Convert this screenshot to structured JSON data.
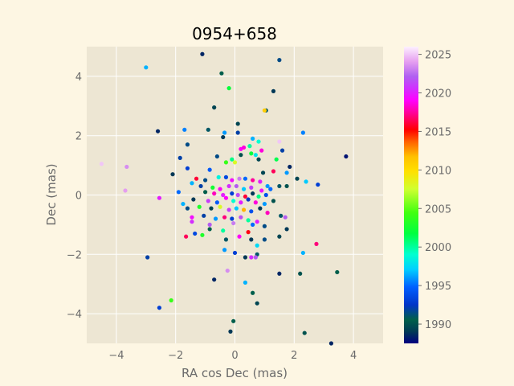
{
  "chart_data": {
    "type": "scatter",
    "title": "0954+658",
    "xlabel": "RA cos Dec (mas)",
    "ylabel": "Dec (mas)",
    "xlim": [
      -5.0,
      5.0
    ],
    "ylim": [
      -5.0,
      5.0
    ],
    "xticks": [
      -4,
      -2,
      0,
      2,
      4
    ],
    "yticks": [
      -4,
      -2,
      0,
      2,
      4
    ],
    "grid": true,
    "colorbar": {
      "label": "",
      "range": [
        1987.5,
        2026
      ],
      "ticks": [
        1990,
        1995,
        2000,
        2005,
        2010,
        2015,
        2020,
        2025
      ],
      "colormap": "gist_ncar"
    },
    "background_color": "#ede6d3",
    "page_color": "#fdf6e3",
    "points": [
      {
        "x": -1.1,
        "y": 4.75,
        "c": 1988.5
      },
      {
        "x": -0.45,
        "y": 4.1,
        "c": 1990.5
      },
      {
        "x": 1.5,
        "y": 4.55,
        "c": 1991.5
      },
      {
        "x": -3.0,
        "y": 4.3,
        "c": 1996.5
      },
      {
        "x": -0.2,
        "y": 3.6,
        "c": 2002.0
      },
      {
        "x": 1.3,
        "y": 3.5,
        "c": 1989.0
      },
      {
        "x": -0.7,
        "y": 2.95,
        "c": 1989.5
      },
      {
        "x": 1.05,
        "y": 2.85,
        "c": 1991.0
      },
      {
        "x": 1.0,
        "y": 2.85,
        "c": 2011.0
      },
      {
        "x": -2.6,
        "y": 2.15,
        "c": 1988.5
      },
      {
        "x": -1.7,
        "y": 2.2,
        "c": 1995.5
      },
      {
        "x": -0.9,
        "y": 2.2,
        "c": 1991.0
      },
      {
        "x": 2.3,
        "y": 2.1,
        "c": 1995.5
      },
      {
        "x": 0.1,
        "y": 2.4,
        "c": 1989.5
      },
      {
        "x": 0.1,
        "y": 2.1,
        "c": 1992.0
      },
      {
        "x": -0.35,
        "y": 2.1,
        "c": 1996.0
      },
      {
        "x": 0.6,
        "y": 1.9,
        "c": 1996.5
      },
      {
        "x": -0.4,
        "y": 1.95,
        "c": 1989.0
      },
      {
        "x": 0.8,
        "y": 1.8,
        "c": 1999.0
      },
      {
        "x": -1.6,
        "y": 1.7,
        "c": 1991.5
      },
      {
        "x": 1.5,
        "y": 1.8,
        "c": 2025.0
      },
      {
        "x": 0.2,
        "y": 1.55,
        "c": 2019.0
      },
      {
        "x": 0.3,
        "y": 1.6,
        "c": 2018.5
      },
      {
        "x": 0.5,
        "y": 1.65,
        "c": 2000.0
      },
      {
        "x": 0.9,
        "y": 1.5,
        "c": 2018.5
      },
      {
        "x": 1.6,
        "y": 1.5,
        "c": 1992.0
      },
      {
        "x": 3.75,
        "y": 1.3,
        "c": 1988.0
      },
      {
        "x": -1.85,
        "y": 1.25,
        "c": 1992.0
      },
      {
        "x": -0.6,
        "y": 1.3,
        "c": 1991.5
      },
      {
        "x": 0.55,
        "y": 1.4,
        "c": 2002.0
      },
      {
        "x": 0.7,
        "y": 1.35,
        "c": 1998.0
      },
      {
        "x": -0.1,
        "y": 1.2,
        "c": 2000.5
      },
      {
        "x": 0.2,
        "y": 1.35,
        "c": 1990.0
      },
      {
        "x": 0.8,
        "y": 1.2,
        "c": 1989.5
      },
      {
        "x": 1.4,
        "y": 1.2,
        "c": 2001.5
      },
      {
        "x": -4.5,
        "y": 1.05,
        "c": 2025.0
      },
      {
        "x": -3.65,
        "y": 0.95,
        "c": 2023.5
      },
      {
        "x": -2.1,
        "y": 0.7,
        "c": 1989.0
      },
      {
        "x": -1.6,
        "y": 0.9,
        "c": 1993.0
      },
      {
        "x": -0.85,
        "y": 0.85,
        "c": 1994.5
      },
      {
        "x": -0.3,
        "y": 1.1,
        "c": 2004.0
      },
      {
        "x": 0.0,
        "y": 1.1,
        "c": 2008.0
      },
      {
        "x": 0.95,
        "y": 0.75,
        "c": 1989.5
      },
      {
        "x": 1.85,
        "y": 0.95,
        "c": 1988.5
      },
      {
        "x": 1.75,
        "y": 0.75,
        "c": 1996.0
      },
      {
        "x": 1.3,
        "y": 0.8,
        "c": 2016.5
      },
      {
        "x": 2.1,
        "y": 0.55,
        "c": 1989.5
      },
      {
        "x": 2.4,
        "y": 0.45,
        "c": 1997.0
      },
      {
        "x": 2.8,
        "y": 0.35,
        "c": 1993.0
      },
      {
        "x": -1.3,
        "y": 0.55,
        "c": 2016.0
      },
      {
        "x": -1.0,
        "y": 0.5,
        "c": 1991.5
      },
      {
        "x": -0.55,
        "y": 0.6,
        "c": 1998.5
      },
      {
        "x": -0.3,
        "y": 0.6,
        "c": 1993.5
      },
      {
        "x": -0.1,
        "y": 0.5,
        "c": 2019.5
      },
      {
        "x": 0.15,
        "y": 0.55,
        "c": 2023.0
      },
      {
        "x": 0.35,
        "y": 0.55,
        "c": 1995.0
      },
      {
        "x": 0.6,
        "y": 0.5,
        "c": 2017.5
      },
      {
        "x": 0.85,
        "y": 0.45,
        "c": 2020.0
      },
      {
        "x": 1.1,
        "y": 0.3,
        "c": 1996.0
      },
      {
        "x": 1.5,
        "y": 0.3,
        "c": 1991.0
      },
      {
        "x": 1.75,
        "y": 0.3,
        "c": 1990.0
      },
      {
        "x": -1.45,
        "y": 0.4,
        "c": 1996.5
      },
      {
        "x": -1.15,
        "y": 0.3,
        "c": 1992.0
      },
      {
        "x": -0.75,
        "y": 0.25,
        "c": 2002.5
      },
      {
        "x": -0.5,
        "y": 0.2,
        "c": 2019.0
      },
      {
        "x": -0.2,
        "y": 0.3,
        "c": 2020.5
      },
      {
        "x": 0.05,
        "y": 0.3,
        "c": 2022.0
      },
      {
        "x": 0.3,
        "y": 0.2,
        "c": 1997.0
      },
      {
        "x": 0.55,
        "y": 0.25,
        "c": 2021.0
      },
      {
        "x": 0.9,
        "y": 0.15,
        "c": 2019.5
      },
      {
        "x": 1.2,
        "y": 0.2,
        "c": 1995.0
      },
      {
        "x": -3.7,
        "y": 0.15,
        "c": 2024.0
      },
      {
        "x": -1.9,
        "y": 0.1,
        "c": 1995.0
      },
      {
        "x": -1.0,
        "y": 0.1,
        "c": 1990.5
      },
      {
        "x": -0.7,
        "y": 0.05,
        "c": 2018.0
      },
      {
        "x": -0.4,
        "y": 0.0,
        "c": 2020.0
      },
      {
        "x": -0.1,
        "y": 0.05,
        "c": 1993.0
      },
      {
        "x": 0.1,
        "y": 0.0,
        "c": 2021.5
      },
      {
        "x": 0.35,
        "y": -0.05,
        "c": 2016.0
      },
      {
        "x": 0.6,
        "y": 0.05,
        "c": 1989.0
      },
      {
        "x": 0.8,
        "y": -0.05,
        "c": 2000.5
      },
      {
        "x": 1.05,
        "y": 0.0,
        "c": 1994.0
      },
      {
        "x": -2.55,
        "y": -0.1,
        "c": 2020.0
      },
      {
        "x": -1.4,
        "y": -0.15,
        "c": 1989.0
      },
      {
        "x": -0.9,
        "y": -0.2,
        "c": 2021.0
      },
      {
        "x": -0.6,
        "y": -0.25,
        "c": 1994.5
      },
      {
        "x": -0.3,
        "y": -0.1,
        "c": 2019.0
      },
      {
        "x": -0.05,
        "y": -0.2,
        "c": 1999.0
      },
      {
        "x": 0.2,
        "y": -0.25,
        "c": 2020.0
      },
      {
        "x": 0.45,
        "y": -0.15,
        "c": 1992.5
      },
      {
        "x": 0.7,
        "y": -0.25,
        "c": 2018.5
      },
      {
        "x": 1.0,
        "y": -0.3,
        "c": 1996.0
      },
      {
        "x": 1.3,
        "y": -0.2,
        "c": 1990.0
      },
      {
        "x": -1.75,
        "y": -0.3,
        "c": 1996.5
      },
      {
        "x": -1.6,
        "y": -0.45,
        "c": 1991.5
      },
      {
        "x": -1.2,
        "y": -0.4,
        "c": 2003.0
      },
      {
        "x": -0.8,
        "y": -0.45,
        "c": 1989.5
      },
      {
        "x": -0.5,
        "y": -0.4,
        "c": 2008.0
      },
      {
        "x": -0.2,
        "y": -0.5,
        "c": 2021.0
      },
      {
        "x": 0.05,
        "y": -0.45,
        "c": 1997.0
      },
      {
        "x": 0.3,
        "y": -0.5,
        "c": 2012.0
      },
      {
        "x": 0.55,
        "y": -0.55,
        "c": 1994.0
      },
      {
        "x": 0.85,
        "y": -0.45,
        "c": 1989.0
      },
      {
        "x": 1.1,
        "y": -0.6,
        "c": 2018.0
      },
      {
        "x": 1.55,
        "y": -0.7,
        "c": 1991.0
      },
      {
        "x": 1.7,
        "y": -0.75,
        "c": 2022.0
      },
      {
        "x": -1.45,
        "y": -0.75,
        "c": 2019.5
      },
      {
        "x": -1.05,
        "y": -0.7,
        "c": 1992.0
      },
      {
        "x": -0.65,
        "y": -0.8,
        "c": 1996.0
      },
      {
        "x": -0.35,
        "y": -0.75,
        "c": 2017.0
      },
      {
        "x": -0.1,
        "y": -0.8,
        "c": 1993.0
      },
      {
        "x": 0.2,
        "y": -0.75,
        "c": 2021.5
      },
      {
        "x": 0.45,
        "y": -0.85,
        "c": 2000.0
      },
      {
        "x": 0.75,
        "y": -0.9,
        "c": 2020.0
      },
      {
        "x": -1.45,
        "y": -0.9,
        "c": 2020.5
      },
      {
        "x": -0.85,
        "y": -1.0,
        "c": 2022.0
      },
      {
        "x": -0.05,
        "y": -0.95,
        "c": 2023.0
      },
      {
        "x": 0.6,
        "y": -1.0,
        "c": 1995.0
      },
      {
        "x": 1.0,
        "y": -1.05,
        "c": 1991.5
      },
      {
        "x": 1.75,
        "y": -1.15,
        "c": 1989.0
      },
      {
        "x": -1.35,
        "y": -1.3,
        "c": 1993.5
      },
      {
        "x": -0.85,
        "y": -1.15,
        "c": 1990.5
      },
      {
        "x": -0.4,
        "y": -1.2,
        "c": 2000.0
      },
      {
        "x": 0.45,
        "y": -1.25,
        "c": 2015.5
      },
      {
        "x": -1.65,
        "y": -1.4,
        "c": 2016.5
      },
      {
        "x": -1.1,
        "y": -1.35,
        "c": 2003.0
      },
      {
        "x": -0.3,
        "y": -1.5,
        "c": 1991.0
      },
      {
        "x": 0.15,
        "y": -1.4,
        "c": 2019.0
      },
      {
        "x": 0.55,
        "y": -1.5,
        "c": 1989.0
      },
      {
        "x": 1.0,
        "y": -1.5,
        "c": 1991.5
      },
      {
        "x": 1.5,
        "y": -1.4,
        "c": 1989.5
      },
      {
        "x": 2.75,
        "y": -1.65,
        "c": 2017.0
      },
      {
        "x": 0.75,
        "y": -1.7,
        "c": 1997.5
      },
      {
        "x": -0.35,
        "y": -1.85,
        "c": 1996.0
      },
      {
        "x": 0.0,
        "y": -1.95,
        "c": 1993.0
      },
      {
        "x": 0.75,
        "y": -2.0,
        "c": 1991.0
      },
      {
        "x": 2.3,
        "y": -1.95,
        "c": 1996.5
      },
      {
        "x": -2.95,
        "y": -2.1,
        "c": 1992.0
      },
      {
        "x": 0.35,
        "y": -2.1,
        "c": 1989.0
      },
      {
        "x": 0.55,
        "y": -2.1,
        "c": 2020.5
      },
      {
        "x": 0.7,
        "y": -2.1,
        "c": 2022.0
      },
      {
        "x": -0.25,
        "y": -2.55,
        "c": 2023.5
      },
      {
        "x": 1.5,
        "y": -2.65,
        "c": 1988.5
      },
      {
        "x": 2.2,
        "y": -2.65,
        "c": 1990.0
      },
      {
        "x": 3.45,
        "y": -2.6,
        "c": 1990.5
      },
      {
        "x": -0.7,
        "y": -2.85,
        "c": 1988.5
      },
      {
        "x": 0.35,
        "y": -2.95,
        "c": 1996.5
      },
      {
        "x": 0.6,
        "y": -3.3,
        "c": 1990.5
      },
      {
        "x": -2.15,
        "y": -3.55,
        "c": 2004.0
      },
      {
        "x": 0.75,
        "y": -3.65,
        "c": 1989.5
      },
      {
        "x": -2.55,
        "y": -3.8,
        "c": 1993.0
      },
      {
        "x": -0.05,
        "y": -4.25,
        "c": 1990.5
      },
      {
        "x": -0.15,
        "y": -4.6,
        "c": 1989.0
      },
      {
        "x": 2.35,
        "y": -4.65,
        "c": 1990.0
      },
      {
        "x": 3.25,
        "y": -5.0,
        "c": 1988.5
      }
    ]
  }
}
